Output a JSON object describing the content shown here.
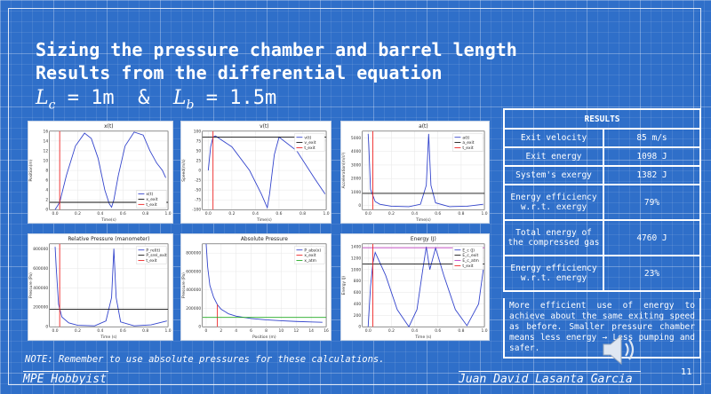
{
  "slide": {
    "title_line1": "Sizing the pressure chamber and barrel length",
    "title_line2": "Results from the differential equation",
    "eq": {
      "var1": "L",
      "sub1": "c",
      "val1": " = 1m  &  ",
      "var2": "L",
      "sub2": "b",
      "val2": " = 1.5m"
    },
    "note": "NOTE: Remember to use absolute pressures for these calculations.",
    "footer_left": "MPE Hobbyist",
    "footer_right": "Juan David Lasanta Garcia",
    "page_number": "11",
    "speaker_icon": "speaker-icon"
  },
  "results": {
    "header": "RESULTS",
    "rows": [
      {
        "label": "Exit velocity",
        "value": "85 m/s"
      },
      {
        "label": "Exit energy",
        "value": "1098 J"
      },
      {
        "label": "System's exergy",
        "value": "1382 J"
      },
      {
        "label": "Energy efficiency w.r.t. exergy",
        "value": "79%"
      },
      {
        "label": "Total energy of the compressed gas",
        "value": "4760 J"
      },
      {
        "label": "Energy efficiency w.r.t. energy",
        "value": "23%"
      }
    ],
    "comment": "More efficient use of energy to achieve about the same exiting speed as before. Smaller pressure chamber means less energy → Less pumping and safer."
  },
  "chart_data": [
    {
      "type": "line",
      "title": "x(t)",
      "xlabel": "Time(s)",
      "ylabel": "Position(m)",
      "xlim": [
        -0.05,
        1.0
      ],
      "ylim": [
        0,
        16
      ],
      "xticks": [
        0.0,
        0.2,
        0.4,
        0.6,
        0.8,
        1.0
      ],
      "yticks": [
        0,
        2,
        4,
        6,
        8,
        10,
        12,
        14,
        16
      ],
      "xtick_labels": [
        "0.0",
        "0.2",
        "0.4",
        "0.6",
        "0.8",
        "1.0"
      ],
      "ytick_labels": [
        "0",
        "2",
        "4",
        "6",
        "8",
        "10",
        "12",
        "14",
        "16"
      ],
      "legend": [
        "x(t)",
        "x_exit",
        "t_exit"
      ],
      "series": [
        {
          "name": "x(t)",
          "color": "#3344cc",
          "x": [
            0,
            0.04,
            0.1,
            0.18,
            0.26,
            0.32,
            0.38,
            0.44,
            0.48,
            0.5,
            0.52,
            0.56,
            0.62,
            0.7,
            0.78,
            0.84,
            0.9,
            0.95,
            0.98
          ],
          "y": [
            0,
            1.5,
            7,
            13,
            15.6,
            14.5,
            10.5,
            4,
            1.2,
            0.5,
            2,
            7,
            13,
            15.8,
            15.2,
            12,
            9.5,
            8,
            6.5
          ]
        },
        {
          "name": "x_exit",
          "color": "#111111",
          "x": [
            -0.05,
            1.0
          ],
          "y": [
            1.5,
            1.5
          ]
        },
        {
          "name": "t_exit",
          "color": "#ee2222",
          "x": [
            0.04,
            0.04
          ],
          "y": [
            0,
            16
          ]
        }
      ]
    },
    {
      "type": "line",
      "title": "v(t)",
      "xlabel": "Time(s)",
      "ylabel": "Speed(m/s)",
      "xlim": [
        -0.05,
        1.0
      ],
      "ylim": [
        -100,
        100
      ],
      "xticks": [
        0.0,
        0.2,
        0.4,
        0.6,
        0.8,
        1.0
      ],
      "yticks": [
        -100,
        -75,
        -50,
        -25,
        0,
        25,
        50,
        75,
        100
      ],
      "xtick_labels": [
        "0.0",
        "0.2",
        "0.4",
        "0.6",
        "0.8",
        "1.0"
      ],
      "ytick_labels": [
        "-100",
        "-75",
        "-50",
        "-25",
        "0",
        "25",
        "50",
        "75",
        "100"
      ],
      "legend": [
        "v(t)",
        "v_exit",
        "t_exit"
      ],
      "series": [
        {
          "name": "v(t)",
          "color": "#3344cc",
          "x": [
            0,
            0.02,
            0.04,
            0.06,
            0.2,
            0.35,
            0.45,
            0.5,
            0.52,
            0.56,
            0.6,
            0.75,
            0.9,
            0.99
          ],
          "y": [
            0,
            60,
            85,
            88,
            60,
            0,
            -60,
            -95,
            -60,
            40,
            85,
            50,
            -20,
            -60
          ]
        },
        {
          "name": "v_exit",
          "color": "#111111",
          "x": [
            -0.05,
            1.0
          ],
          "y": [
            85,
            85
          ]
        },
        {
          "name": "t_exit",
          "color": "#ee2222",
          "x": [
            0.04,
            0.04
          ],
          "y": [
            -100,
            100
          ]
        }
      ]
    },
    {
      "type": "line",
      "title": "a(t)",
      "xlabel": "Time(s)",
      "ylabel": "Acceleration(m/s²)",
      "xlim": [
        -0.05,
        1.0
      ],
      "ylim": [
        -300,
        5500
      ],
      "xticks": [
        0.0,
        0.2,
        0.4,
        0.6,
        0.8,
        1.0
      ],
      "yticks": [
        0,
        1000,
        2000,
        3000,
        4000,
        5000
      ],
      "xtick_labels": [
        "0.0",
        "0.2",
        "0.4",
        "0.6",
        "0.8",
        "1.0"
      ],
      "ytick_labels": [
        "0",
        "1000",
        "2000",
        "3000",
        "4000",
        "5000"
      ],
      "legend": [
        "a(t)",
        "a_exit",
        "t_exit"
      ],
      "series": [
        {
          "name": "a(t)",
          "color": "#3344cc",
          "x": [
            0,
            0.005,
            0.02,
            0.06,
            0.1,
            0.2,
            0.35,
            0.45,
            0.5,
            0.52,
            0.54,
            0.58,
            0.7,
            0.85,
            0.99
          ],
          "y": [
            5300,
            4500,
            1200,
            300,
            100,
            -50,
            -80,
            100,
            1500,
            5300,
            1500,
            200,
            -80,
            -50,
            100
          ]
        },
        {
          "name": "a_exit",
          "color": "#111111",
          "x": [
            -0.05,
            1.0
          ],
          "y": [
            900,
            900
          ]
        },
        {
          "name": "t_exit",
          "color": "#ee2222",
          "x": [
            0.04,
            0.04
          ],
          "y": [
            -300,
            5500
          ]
        }
      ]
    },
    {
      "type": "line",
      "title": "Relative Pressure (manometer)",
      "xlabel": "Time (s)",
      "ylabel": "Pressure (Pa)",
      "xlim": [
        -0.05,
        1.0
      ],
      "ylim": [
        0,
        850000
      ],
      "xticks": [
        0.0,
        0.2,
        0.4,
        0.6,
        0.8,
        1.0
      ],
      "yticks": [
        0,
        200000,
        400000,
        600000,
        800000
      ],
      "xtick_labels": [
        "0.0",
        "0.2",
        "0.4",
        "0.6",
        "0.8",
        "1.0"
      ],
      "ytick_labels": [
        "0",
        "200000",
        "400000",
        "600000",
        "800000"
      ],
      "legend": [
        "P_rel(t)",
        "P_srel_exit",
        "t_exit"
      ],
      "series": [
        {
          "name": "P_rel(t)",
          "color": "#3344cc",
          "x": [
            0,
            0.01,
            0.03,
            0.06,
            0.12,
            0.2,
            0.35,
            0.45,
            0.5,
            0.52,
            0.54,
            0.58,
            0.7,
            0.85,
            0.99
          ],
          "y": [
            820000,
            600000,
            230000,
            100000,
            40000,
            15000,
            10000,
            60000,
            300000,
            800000,
            300000,
            50000,
            10000,
            20000,
            60000
          ]
        },
        {
          "name": "P_srel_exit",
          "color": "#111111",
          "x": [
            -0.05,
            1.0
          ],
          "y": [
            180000,
            180000
          ]
        },
        {
          "name": "t_exit",
          "color": "#ee2222",
          "x": [
            0.04,
            0.04
          ],
          "y": [
            0,
            850000
          ]
        }
      ]
    },
    {
      "type": "line",
      "title": "Absolute Pressure",
      "xlabel": "Position (m)",
      "ylabel": "Pressure (Pa)",
      "xlim": [
        -0.5,
        16
      ],
      "ylim": [
        0,
        900000
      ],
      "xticks": [
        0,
        2,
        4,
        6,
        8,
        10,
        12,
        14,
        16
      ],
      "yticks": [
        0,
        200000,
        400000,
        600000,
        800000
      ],
      "xtick_labels": [
        "0",
        "2",
        "4",
        "6",
        "8",
        "10",
        "12",
        "14",
        "16"
      ],
      "ytick_labels": [
        "0",
        "200000",
        "400000",
        "600000",
        "800000"
      ],
      "legend": [
        "P_abs(x)",
        "x_exit",
        "x_atm"
      ],
      "series": [
        {
          "name": "P_abs(x)",
          "color": "#3344cc",
          "x": [
            0,
            0.2,
            0.5,
            1,
            1.5,
            2,
            3,
            4,
            6,
            8,
            10,
            12,
            14,
            15.5
          ],
          "y": [
            900000,
            650000,
            450000,
            320000,
            240000,
            190000,
            140000,
            115000,
            90000,
            75000,
            65000,
            58000,
            52000,
            48000
          ]
        },
        {
          "name": "x_exit",
          "color": "#ee2222",
          "x": [
            1.5,
            1.5
          ],
          "y": [
            0,
            240000
          ]
        },
        {
          "name": "x_atm",
          "color": "#22aa22",
          "x": [
            -0.5,
            16
          ],
          "y": [
            101325,
            101325
          ]
        }
      ]
    },
    {
      "type": "line",
      "title": "Energy (J)",
      "xlabel": "Time (s)",
      "ylabel": "Energy (J)",
      "xlim": [
        -0.05,
        1.0
      ],
      "ylim": [
        0,
        1450
      ],
      "xticks": [
        0.0,
        0.2,
        0.4,
        0.6,
        0.8,
        1.0
      ],
      "yticks": [
        0,
        200,
        400,
        600,
        800,
        1000,
        1200,
        1400
      ],
      "xtick_labels": [
        "0.0",
        "0.2",
        "0.4",
        "0.6",
        "0.8",
        "1.0"
      ],
      "ytick_labels": [
        "0",
        "200",
        "400",
        "600",
        "800",
        "1000",
        "1200",
        "1400"
      ],
      "legend": [
        "E_c (J)",
        "E_c_exit",
        "E_c_atm",
        "t_exit"
      ],
      "series": [
        {
          "name": "E_c (J)",
          "color": "#3344cc",
          "x": [
            0,
            0.02,
            0.04,
            0.06,
            0.15,
            0.25,
            0.35,
            0.42,
            0.47,
            0.5,
            0.53,
            0.58,
            0.65,
            0.75,
            0.85,
            0.95,
            0.99
          ],
          "y": [
            0,
            700,
            1100,
            1300,
            900,
            300,
            0,
            300,
            1000,
            1400,
            1000,
            1380,
            900,
            300,
            20,
            400,
            1000
          ]
        },
        {
          "name": "E_c_exit",
          "color": "#111111",
          "x": [
            -0.05,
            1.0
          ],
          "y": [
            1098,
            1098
          ]
        },
        {
          "name": "E_c_atm",
          "color": "#c040c0",
          "x": [
            -0.05,
            1.0
          ],
          "y": [
            1382,
            1382
          ]
        },
        {
          "name": "t_exit",
          "color": "#ee2222",
          "x": [
            0.04,
            0.04
          ],
          "y": [
            0,
            1450
          ]
        }
      ]
    }
  ]
}
